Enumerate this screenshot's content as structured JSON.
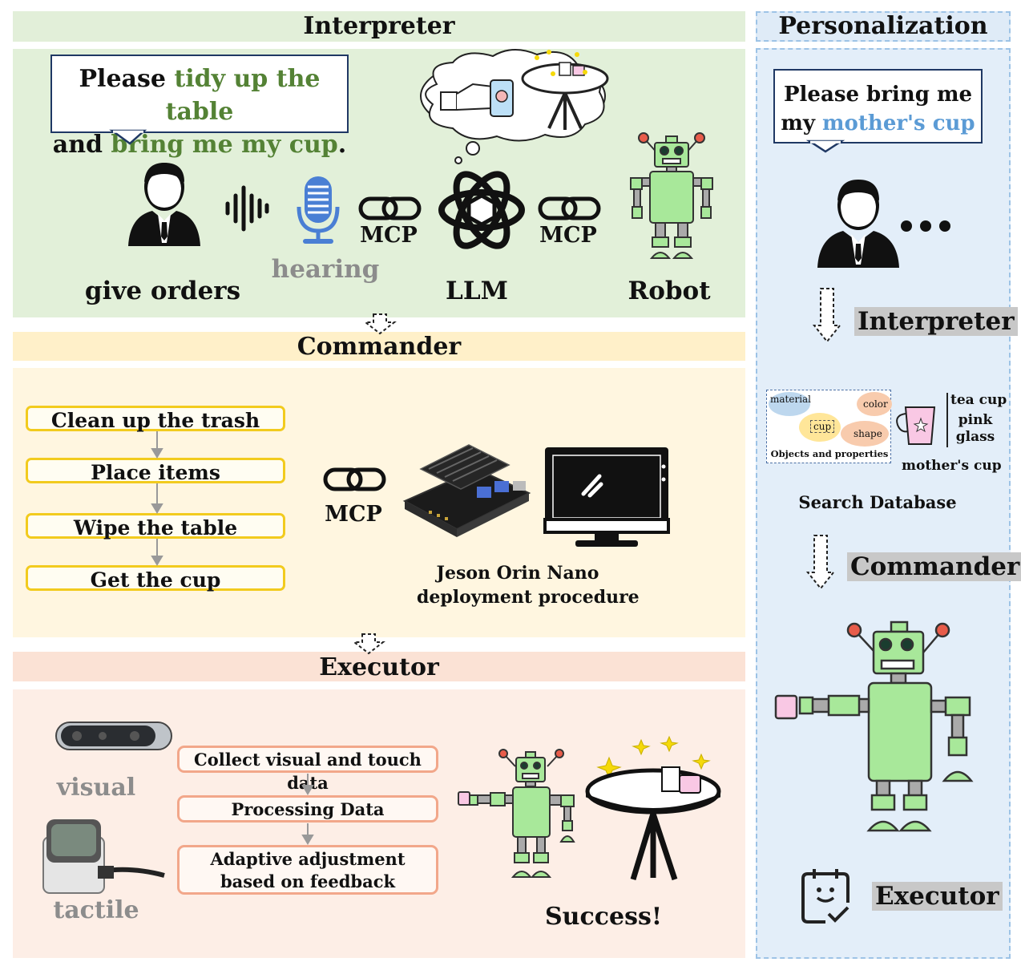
{
  "interpreter": {
    "title": "Interpreter",
    "bubble": {
      "prefix": "Please ",
      "hl1": "tidy up the table",
      "mid": "and ",
      "hl2": "bring me my cup",
      "suffix": "."
    },
    "labels": {
      "give_orders": "give orders",
      "hearing": "hearing",
      "mcp1": "MCP",
      "mcp2": "MCP",
      "llm": "LLM",
      "robot": "Robot"
    }
  },
  "commander": {
    "title": "Commander",
    "steps": [
      "Clean up the trash",
      "Place items",
      "Wipe the table",
      "Get the cup"
    ],
    "mcp": "MCP",
    "device_caption_1": "Jeson Orin Nano",
    "device_caption_2": "deployment procedure"
  },
  "executor": {
    "title": "Executor",
    "sensors": {
      "visual": "visual",
      "tactile": "tactile"
    },
    "steps": [
      "Collect visual and touch data",
      "Processing Data",
      "Adaptive adjustment based on feedback"
    ],
    "success": "Success!"
  },
  "personalization": {
    "title": "Personalization",
    "bubble": {
      "line1": "Please bring me",
      "prefix2": "my ",
      "hl": "mother's cup"
    },
    "interpreter": "Interpreter",
    "database": {
      "material": "material",
      "color": "color",
      "cup": "cup",
      "shape": "shape",
      "caption": "Objects and properties",
      "props": [
        "tea cup",
        "pink",
        "glass"
      ],
      "cup_label": "mother's cup",
      "search": "Search Database"
    },
    "commander": "Commander",
    "executor": "Executor"
  },
  "colors": {
    "interpreter_band": "#e2f0d9",
    "interpreter_title": "#e2efd9",
    "commander_band": "#fff6e0",
    "commander_title": "#fff0c9",
    "executor_band": "#fdeee6",
    "executor_title": "#fbe2d5",
    "personalization_band": "#dfebf7",
    "highlight_green": "#548235",
    "highlight_blue": "#5b9bd5",
    "robot_green": "#a8e89a"
  }
}
